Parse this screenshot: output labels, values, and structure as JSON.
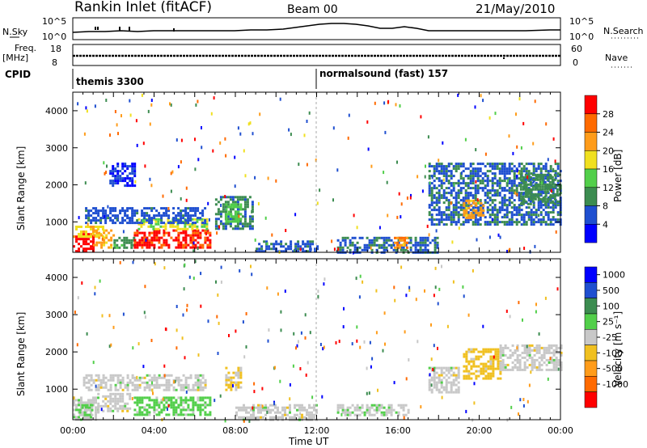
{
  "header": {
    "station": "Rankin Inlet (fitACF)",
    "beam": "Beam 00",
    "date": "21/May/2010"
  },
  "sky_panel": {
    "left_label": "N.Sky",
    "right_label": "N.Search",
    "ytick_high": "10^5",
    "ytick_low": "10^0"
  },
  "freq_panel": {
    "left_label_1": "Freq.",
    "left_label_2": "[MHz]",
    "ytick_high": "18",
    "ytick_low": "8",
    "right_label": "Nave",
    "right_tick_high": "60",
    "right_tick_low": "0"
  },
  "cpid": {
    "label": "CPID",
    "segments": [
      {
        "name": "themis 3300",
        "start_hour": 0
      },
      {
        "name": "normalsound (fast) 157",
        "start_hour": 12
      }
    ]
  },
  "colors": {
    "power": [
      "#0000ff",
      "#1f4fd0",
      "#3c8c50",
      "#52cf4a",
      "#f0e020",
      "#ff9c1a",
      "#ff6a00",
      "#ff0000"
    ],
    "velocity": [
      "#ff0000",
      "#ff6a00",
      "#ff9c1a",
      "#f0c020",
      "#c8c8c8",
      "#52cf4a",
      "#3c8c50",
      "#1f4fd0",
      "#0000ff"
    ]
  },
  "chart_data": [
    {
      "type": "heatmap",
      "name": "power",
      "ylabel": "Slant Range [km]",
      "yticks": [
        "1000",
        "2000",
        "3000",
        "4000"
      ],
      "ylim": [
        180,
        4500
      ],
      "xlim_hours": [
        0,
        24
      ],
      "colorbar_label": "Power [dB]",
      "colorbar_ticks": [
        "4",
        "8",
        "12",
        "16",
        "20",
        "24",
        "28"
      ],
      "clim": [
        0,
        30
      ],
      "regions": [
        {
          "t0": 0.0,
          "t1": 1.0,
          "r0": 200,
          "r1": 700,
          "level": 29
        },
        {
          "t0": 0.0,
          "t1": 1.5,
          "r0": 600,
          "r1": 900,
          "level": 18
        },
        {
          "t0": 1.0,
          "t1": 2.0,
          "r0": 300,
          "r1": 800,
          "level": 20
        },
        {
          "t0": 2.0,
          "t1": 3.0,
          "r0": 300,
          "r1": 600,
          "level": 10
        },
        {
          "t0": 3.0,
          "t1": 6.8,
          "r0": 300,
          "r1": 800,
          "level": 27
        },
        {
          "t0": 3.2,
          "t1": 6.6,
          "r0": 800,
          "r1": 1100,
          "level": 15
        },
        {
          "t0": 0.6,
          "t1": 6.5,
          "r0": 1000,
          "r1": 1400,
          "level": 6
        },
        {
          "t0": 1.8,
          "t1": 3.0,
          "r0": 2000,
          "r1": 2600,
          "level": 4
        },
        {
          "t0": 7.0,
          "t1": 8.8,
          "r0": 800,
          "r1": 1700,
          "level": 8
        },
        {
          "t0": 7.5,
          "t1": 8.3,
          "r0": 1000,
          "r1": 1500,
          "level": 13
        },
        {
          "t0": 9.0,
          "t1": 12.0,
          "r0": 200,
          "r1": 500,
          "level": 6
        },
        {
          "t0": 13.0,
          "t1": 18.0,
          "r0": 200,
          "r1": 600,
          "level": 7
        },
        {
          "t0": 15.8,
          "t1": 16.5,
          "r0": 300,
          "r1": 600,
          "level": 22
        },
        {
          "t0": 17.5,
          "t1": 24.0,
          "r0": 900,
          "r1": 2600,
          "level": 7
        },
        {
          "t0": 19.2,
          "t1": 20.2,
          "r0": 1100,
          "r1": 1600,
          "level": 20
        },
        {
          "t0": 22.0,
          "t1": 24.0,
          "r0": 1500,
          "r1": 2300,
          "level": 9
        }
      ]
    },
    {
      "type": "heatmap",
      "name": "velocity",
      "ylabel": "Slant Range [km]",
      "yticks": [
        "1000",
        "2000",
        "3000",
        "4000"
      ],
      "ylim": [
        180,
        4500
      ],
      "xlim_hours": [
        0,
        24
      ],
      "xticks": [
        "00:00",
        "04:00",
        "08:00",
        "12:00",
        "16:00",
        "20:00",
        "00:00"
      ],
      "xlabel": "Time UT",
      "colorbar_label": "Velocity [m s⁻¹]",
      "colorbar_ticks": [
        "1000",
        "500",
        "100",
        "25",
        "-25",
        "-100",
        "-500",
        "-1000"
      ],
      "clim": [
        -1200,
        1200
      ],
      "regions": [
        {
          "t0": 0.0,
          "t1": 1.2,
          "r0": 200,
          "r1": 800,
          "level": 60
        },
        {
          "t0": 0.3,
          "t1": 1.0,
          "r0": 300,
          "r1": 600,
          "level": 220
        },
        {
          "t0": 1.2,
          "t1": 2.8,
          "r0": 400,
          "r1": 900,
          "level": 0
        },
        {
          "t0": 3.0,
          "t1": 6.8,
          "r0": 300,
          "r1": 800,
          "level": 250
        },
        {
          "t0": 0.5,
          "t1": 6.5,
          "r0": 1000,
          "r1": 1400,
          "level": 0
        },
        {
          "t0": 7.5,
          "t1": 8.3,
          "r0": 1000,
          "r1": 1600,
          "level": -150
        },
        {
          "t0": 8.0,
          "t1": 12.0,
          "r0": 200,
          "r1": 600,
          "level": 0
        },
        {
          "t0": 13.0,
          "t1": 16.5,
          "r0": 300,
          "r1": 600,
          "level": 70
        },
        {
          "t0": 17.5,
          "t1": 19.0,
          "r0": 900,
          "r1": 1600,
          "level": 0
        },
        {
          "t0": 19.2,
          "t1": 21.0,
          "r0": 1300,
          "r1": 2100,
          "level": -250
        },
        {
          "t0": 21.0,
          "t1": 24.0,
          "r0": 1500,
          "r1": 2200,
          "level": 0
        }
      ]
    }
  ]
}
